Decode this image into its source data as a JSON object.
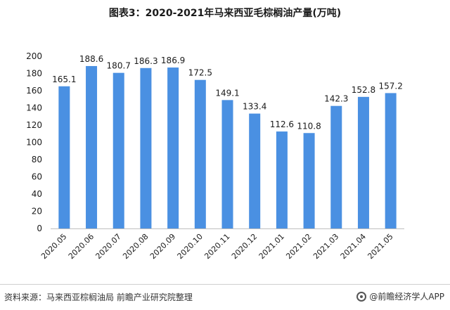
{
  "title": "图表3：2020-2021年马来西亚毛棕榈油产量(万吨)",
  "source": "资料来源：马来西亚棕榈油局 前瞻产业研究院整理",
  "brand": "@前瞻经济学人APP",
  "colors": {
    "bar": "#4a90e2",
    "axis": "#bfbfbf",
    "text": "#1a1a1a"
  },
  "chart_data": {
    "type": "bar",
    "categories": [
      "2020.05",
      "2020.06",
      "2020.07",
      "2020.08",
      "2020.09",
      "2020.10",
      "2020.11",
      "2020.12",
      "2021.01",
      "2021.02",
      "2021.03",
      "2021.04",
      "2021.05"
    ],
    "values": [
      165.1,
      188.6,
      180.7,
      186.3,
      186.9,
      172.5,
      149.1,
      133.4,
      112.6,
      110.8,
      142.3,
      152.8,
      157.2
    ],
    "data_labels": [
      "165.1",
      "188.6",
      "180.7",
      "186.3",
      "186.9",
      "172.5",
      "149.1",
      "133.4",
      "112.6",
      "110.8",
      "142.3",
      "152.8",
      "157.2"
    ],
    "yticks": [
      "0",
      "20",
      "40",
      "60",
      "80",
      "100",
      "120",
      "140",
      "160",
      "180",
      "200"
    ],
    "ylim": [
      0,
      200
    ],
    "grid": false,
    "legend": "none"
  }
}
